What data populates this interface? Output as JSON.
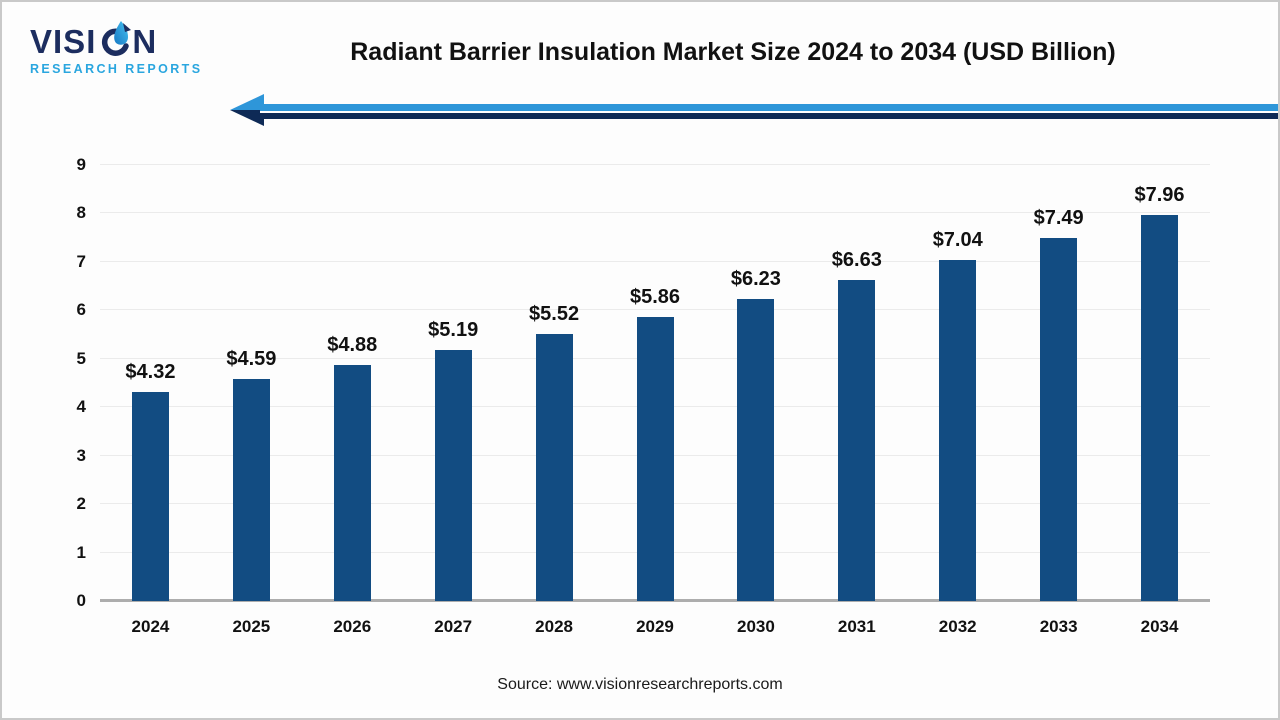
{
  "logo": {
    "word_start": "VISI",
    "word_end": "N",
    "subtitle": "RESEARCH REPORTS"
  },
  "header": {
    "title": "Radiant Barrier Insulation Market Size 2024 to 2034 (USD Billion)"
  },
  "footer": {
    "source": "Source: www.visionresearchreports.com"
  },
  "chart_data": {
    "type": "bar",
    "title": "Radiant Barrier Insulation Market Size 2024 to 2034 (USD Billion)",
    "categories": [
      "2024",
      "2025",
      "2026",
      "2027",
      "2028",
      "2029",
      "2030",
      "2031",
      "2032",
      "2033",
      "2034"
    ],
    "values": [
      4.32,
      4.59,
      4.88,
      5.19,
      5.52,
      5.86,
      6.23,
      6.63,
      7.04,
      7.49,
      7.96
    ],
    "data_labels": [
      "$4.32",
      "$4.59",
      "$4.88",
      "$5.19",
      "$5.52",
      "$5.86",
      "$6.23",
      "$6.63",
      "$7.04",
      "$7.49",
      "$7.96"
    ],
    "xlabel": "",
    "ylabel": "",
    "ylim": [
      0,
      9
    ],
    "yticks": [
      0,
      1,
      2,
      3,
      4,
      5,
      6,
      7,
      8,
      9
    ],
    "grid": true,
    "legend": false,
    "bar_color": "#124C82"
  },
  "colors": {
    "bar": "#124C82",
    "gridline": "#EBEBEB",
    "axis_line": "#ADADAD",
    "arrow_light_blue": "#2E96D9",
    "arrow_navy": "#0E2A56",
    "logo_navy": "#1C2D5F",
    "logo_blue": "#2AA6DF",
    "text": "#111111"
  }
}
